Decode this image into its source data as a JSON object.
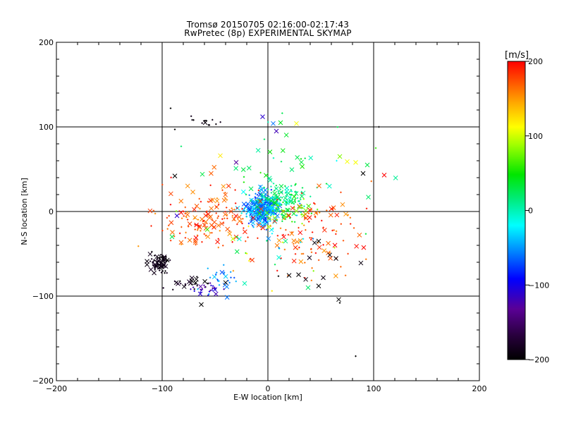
{
  "chart_data": {
    "type": "scatter",
    "title": "Tromsø 20150705 02:16:00-02:17:43",
    "subtitle": "RwPretec (8p) EXPERIMENTAL SKYMAP",
    "xlabel": "E-W location [km]",
    "ylabel": "N-S location [km]",
    "xlim": [
      -200,
      200
    ],
    "ylim": [
      -200,
      200
    ],
    "xticks": [
      -200,
      -100,
      0,
      100,
      200
    ],
    "yticks": [
      -200,
      -100,
      0,
      100,
      200
    ],
    "grid_lines": [
      -100,
      0,
      100
    ],
    "grid": true,
    "colorbar": {
      "label": "[m/s]",
      "min": -200,
      "max": 200,
      "ticks": [
        200,
        100,
        0,
        -100,
        -200
      ],
      "colormap": "rainbow: black-purple-blue-cyan-green-yellow-red"
    },
    "clusters": [
      {
        "note": "black dense cluster",
        "center": [
          -103,
          -62
        ],
        "spread": [
          5,
          5
        ],
        "count": 90,
        "v": [
          -200,
          -180
        ],
        "x_frac": 0.3
      },
      {
        "note": "black arc",
        "center": [
          -75,
          -85
        ],
        "spread": [
          9,
          4
        ],
        "count": 25,
        "v": [
          -200,
          -175
        ],
        "x_frac": 0.3
      },
      {
        "note": "purple/blue arc",
        "center": [
          -58,
          -91
        ],
        "spread": [
          7,
          3
        ],
        "count": 25,
        "v": [
          -140,
          -95
        ],
        "x_frac": 0.2
      },
      {
        "note": "cyan lower",
        "center": [
          -45,
          -82
        ],
        "spread": [
          10,
          8
        ],
        "count": 25,
        "v": [
          -75,
          -35
        ],
        "x_frac": 0.4
      },
      {
        "note": "central cyan/blue dense",
        "center": [
          -5,
          3
        ],
        "spread": [
          8,
          9
        ],
        "count": 360,
        "v": [
          -85,
          -20
        ],
        "x_frac": 0.45
      },
      {
        "note": "green NE of center",
        "center": [
          12,
          18
        ],
        "spread": [
          12,
          10
        ],
        "count": 90,
        "v": [
          -10,
          40
        ],
        "x_frac": 0.4
      },
      {
        "note": "green/yellow right",
        "center": [
          25,
          2
        ],
        "spread": [
          10,
          10
        ],
        "count": 50,
        "v": [
          0,
          90
        ],
        "x_frac": 0.4
      },
      {
        "note": "red west",
        "center": [
          -55,
          -10
        ],
        "spread": [
          26,
          20
        ],
        "count": 160,
        "v": [
          150,
          200
        ],
        "x_frac": 0.35
      },
      {
        "note": "red east",
        "center": [
          42,
          -25
        ],
        "spread": [
          20,
          22
        ],
        "count": 110,
        "v": [
          150,
          200
        ],
        "x_frac": 0.35
      },
      {
        "note": "green scattered north",
        "center": [
          10,
          58
        ],
        "spread": [
          30,
          25
        ],
        "count": 30,
        "v": [
          -5,
          60
        ],
        "x_frac": 0.5
      },
      {
        "note": "mixed scattered",
        "center": [
          0,
          -30
        ],
        "spread": [
          40,
          30
        ],
        "count": 40,
        "v": [
          -60,
          120
        ],
        "x_frac": 0.4
      },
      {
        "note": "black top",
        "center": [
          -60,
          106
        ],
        "spread": [
          8,
          3
        ],
        "count": 12,
        "v": [
          -200,
          -185
        ],
        "x_frac": 0.1
      },
      {
        "note": "black east",
        "center": [
          55,
          -60
        ],
        "spread": [
          25,
          20
        ],
        "count": 10,
        "v": [
          -200,
          -185
        ],
        "x_frac": 0.7
      }
    ],
    "points": [
      {
        "x": -63,
        "y": -110,
        "v": -200,
        "m": "x"
      },
      {
        "x": 83,
        "y": -171,
        "v": -200,
        "m": "+"
      },
      {
        "x": 67,
        "y": -104,
        "v": -200,
        "m": "x"
      },
      {
        "x": 68,
        "y": -108,
        "v": -200,
        "m": "+"
      },
      {
        "x": 105,
        "y": 100,
        "v": -200,
        "m": "+"
      },
      {
        "x": -92,
        "y": 122,
        "v": -200,
        "m": "+"
      },
      {
        "x": -88,
        "y": 97,
        "v": -200,
        "m": "+"
      },
      {
        "x": -88,
        "y": 42,
        "v": -200,
        "m": "x"
      },
      {
        "x": -40,
        "y": -84,
        "v": -200,
        "m": "x"
      },
      {
        "x": 90,
        "y": 45,
        "v": -200,
        "m": "x"
      },
      {
        "x": 48,
        "y": -88,
        "v": -200,
        "m": "x"
      },
      {
        "x": 48,
        "y": -35,
        "v": -200,
        "m": "x"
      },
      {
        "x": -5,
        "y": 112,
        "v": -110,
        "m": "x"
      },
      {
        "x": 8,
        "y": 95,
        "v": -120,
        "m": "x"
      },
      {
        "x": -30,
        "y": 58,
        "v": -130,
        "m": "x"
      },
      {
        "x": 12,
        "y": 105,
        "v": 40,
        "m": "x"
      },
      {
        "x": 27,
        "y": 104,
        "v": 110,
        "m": "x"
      },
      {
        "x": 5,
        "y": 104,
        "v": -60,
        "m": "x"
      },
      {
        "x": 68,
        "y": 65,
        "v": 80,
        "m": "x"
      },
      {
        "x": 75,
        "y": 59,
        "v": 110,
        "m": "x"
      },
      {
        "x": 83,
        "y": 58,
        "v": 110,
        "m": "x"
      },
      {
        "x": 94,
        "y": 55,
        "v": 30,
        "m": "x"
      },
      {
        "x": 110,
        "y": 43,
        "v": 200,
        "m": "x"
      },
      {
        "x": 95,
        "y": 17,
        "v": 20,
        "m": "x"
      },
      {
        "x": -82,
        "y": 77,
        "v": 20,
        "m": "+"
      },
      {
        "x": -45,
        "y": 66,
        "v": 120,
        "m": "x"
      },
      {
        "x": -62,
        "y": 44,
        "v": 30,
        "m": "x"
      },
      {
        "x": -86,
        "y": -5,
        "v": -110,
        "m": "x"
      },
      {
        "x": -22,
        "y": -85,
        "v": 0,
        "m": "x"
      },
      {
        "x": 38,
        "y": -90,
        "v": 20,
        "m": "x"
      },
      {
        "x": 65,
        "y": 60,
        "v": -20,
        "m": "+"
      },
      {
        "x": 102,
        "y": 75,
        "v": 60,
        "m": "+"
      }
    ]
  }
}
